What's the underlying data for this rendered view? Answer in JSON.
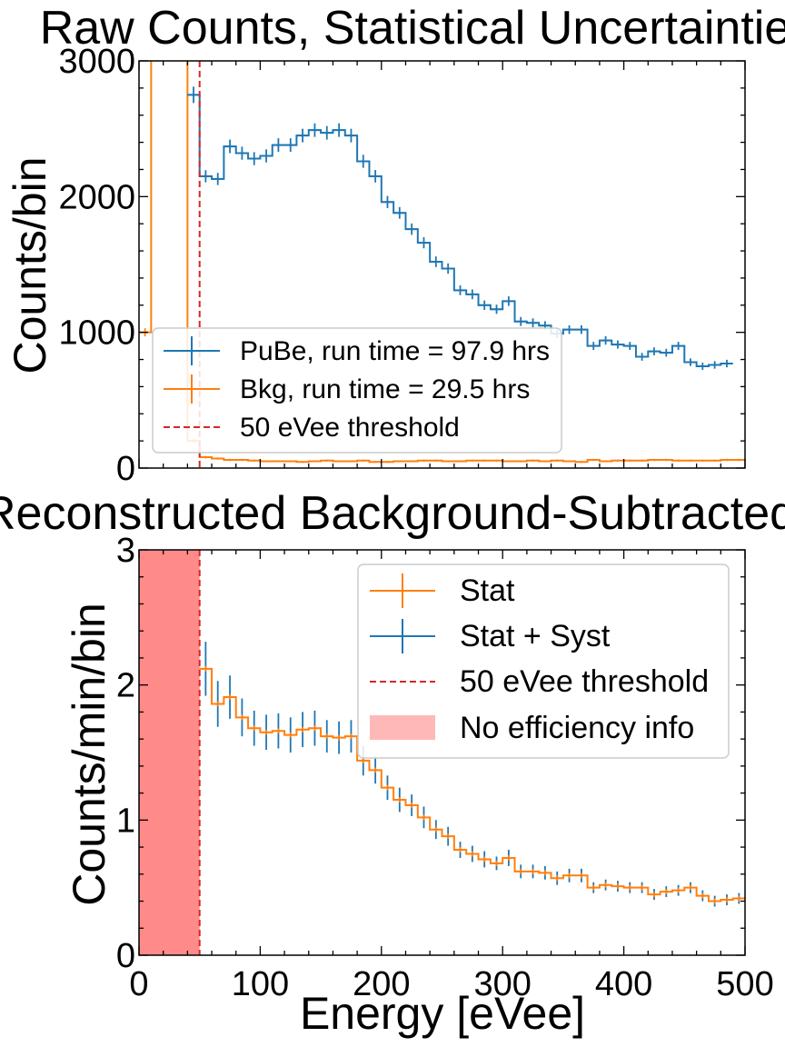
{
  "colors": {
    "pube": "#1f77b4",
    "bkg": "#ff7f0e",
    "threshold": "#d62728",
    "noeff_band": "#ff8a8a",
    "noeff_legend": "#ffb8b8"
  },
  "chart_data": [
    {
      "type": "line",
      "title": "Raw Counts, Statistical Uncertainties",
      "xlabel": "",
      "ylabel": "Counts/bin",
      "xlim": [
        0,
        500
      ],
      "ylim": [
        0,
        3000
      ],
      "yticks": [
        "0",
        "1000",
        "2000",
        "3000"
      ],
      "xticks": [
        0,
        100,
        200,
        300,
        400,
        500
      ],
      "grid": false,
      "legend_placement": "lower-left",
      "legend": [
        "PuBe, run time = 97.9 hrs",
        "Bkg, run time = 29.5 hrs",
        "50 eVee threshold"
      ],
      "threshold": 50,
      "bin_width": 10,
      "series": [
        {
          "name": "PuBe, run time = 97.9 hrs",
          "bin_start": 40,
          "values": [
            2750,
            2150,
            2130,
            2370,
            2320,
            2280,
            2300,
            2380,
            2380,
            2450,
            2490,
            2470,
            2490,
            2450,
            2260,
            2150,
            1960,
            1880,
            1760,
            1660,
            1520,
            1470,
            1310,
            1280,
            1200,
            1170,
            1230,
            1080,
            1070,
            1050,
            990,
            1020,
            1020,
            900,
            940,
            910,
            900,
            820,
            860,
            850,
            900,
            780,
            750,
            760,
            770
          ],
          "errors": [
            60,
            45,
            45,
            50,
            48,
            48,
            48,
            50,
            50,
            50,
            50,
            50,
            50,
            50,
            48,
            46,
            45,
            43,
            42,
            41,
            39,
            38,
            36,
            36,
            35,
            34,
            35,
            33,
            33,
            32,
            32,
            32,
            32,
            30,
            31,
            30,
            30,
            29,
            29,
            29,
            30,
            28,
            27,
            28,
            28
          ]
        },
        {
          "name": "Bkg, run time = 29.5 hrs",
          "bin_start": 0,
          "values": [
            1000,
            6000,
            6000,
            6000,
            200,
            80,
            70,
            60,
            60,
            55,
            50,
            50,
            50,
            45,
            50,
            55,
            50,
            50,
            55,
            45,
            45,
            50,
            50,
            55,
            55,
            50,
            50,
            55,
            55,
            55,
            50,
            50,
            55,
            50,
            55,
            50,
            45,
            60,
            50,
            55,
            55,
            55,
            60,
            60,
            55,
            55,
            55,
            55,
            60,
            60
          ],
          "errors": [
            30,
            80,
            80,
            80,
            15,
            9,
            8,
            8,
            8,
            7,
            7,
            7,
            7,
            7,
            7,
            7,
            7,
            7,
            7,
            7,
            7,
            7,
            7,
            7,
            7,
            7,
            7,
            7,
            7,
            7,
            7,
            7,
            7,
            7,
            7,
            7,
            7,
            8,
            7,
            7,
            7,
            7,
            8,
            8,
            7,
            7,
            7,
            7,
            8,
            8
          ]
        }
      ]
    },
    {
      "type": "line",
      "title": "Reconstructed Background-Subtracted",
      "xlabel": "Energy [eVee]",
      "ylabel": "Counts/min/bin",
      "xlim": [
        0,
        500
      ],
      "ylim": [
        0,
        3
      ],
      "yticks": [
        "0",
        "1",
        "2",
        "3"
      ],
      "xticks": [
        "0",
        "100",
        "200",
        "300",
        "400",
        "500"
      ],
      "grid": false,
      "legend_placement": "top-right",
      "legend": [
        "Stat",
        "Stat + Syst",
        "50 eVee threshold",
        "No efficiency info"
      ],
      "threshold": 50,
      "no_efficiency_region": [
        0,
        50
      ],
      "bin_width": 10,
      "series": [
        {
          "name": "Stat",
          "bin_start": 50,
          "values": [
            2.12,
            1.86,
            1.91,
            1.76,
            1.68,
            1.65,
            1.66,
            1.63,
            1.67,
            1.68,
            1.62,
            1.61,
            1.62,
            1.44,
            1.37,
            1.24,
            1.15,
            1.11,
            1.02,
            0.93,
            0.88,
            0.78,
            0.75,
            0.71,
            0.68,
            0.72,
            0.62,
            0.62,
            0.61,
            0.57,
            0.59,
            0.59,
            0.5,
            0.52,
            0.51,
            0.5,
            0.5,
            0.45,
            0.47,
            0.48,
            0.5,
            0.44,
            0.4,
            0.41,
            0.42
          ],
          "errors": [
            0.02,
            0.02,
            0.02,
            0.02,
            0.02,
            0.02,
            0.02,
            0.02,
            0.02,
            0.02,
            0.02,
            0.02,
            0.02,
            0.02,
            0.02,
            0.02,
            0.02,
            0.02,
            0.02,
            0.02,
            0.02,
            0.02,
            0.02,
            0.02,
            0.02,
            0.02,
            0.02,
            0.02,
            0.02,
            0.02,
            0.02,
            0.02,
            0.02,
            0.02,
            0.02,
            0.02,
            0.02,
            0.02,
            0.02,
            0.02,
            0.02,
            0.02,
            0.02,
            0.02,
            0.02
          ]
        },
        {
          "name": "Stat + Syst",
          "bin_start": 50,
          "values": [
            2.12,
            1.86,
            1.91,
            1.76,
            1.68,
            1.65,
            1.66,
            1.63,
            1.67,
            1.68,
            1.62,
            1.61,
            1.62,
            1.44,
            1.37,
            1.24,
            1.15,
            1.11,
            1.02,
            0.93,
            0.88,
            0.78,
            0.75,
            0.71,
            0.68,
            0.72,
            0.62,
            0.62,
            0.61,
            0.57,
            0.59,
            0.59,
            0.5,
            0.52,
            0.51,
            0.5,
            0.5,
            0.45,
            0.47,
            0.48,
            0.5,
            0.44,
            0.4,
            0.41,
            0.42
          ],
          "errors": [
            0.2,
            0.17,
            0.16,
            0.14,
            0.13,
            0.13,
            0.13,
            0.13,
            0.13,
            0.13,
            0.12,
            0.12,
            0.12,
            0.11,
            0.1,
            0.09,
            0.09,
            0.08,
            0.08,
            0.07,
            0.07,
            0.06,
            0.06,
            0.06,
            0.05,
            0.06,
            0.05,
            0.05,
            0.05,
            0.05,
            0.05,
            0.05,
            0.04,
            0.04,
            0.04,
            0.04,
            0.04,
            0.04,
            0.04,
            0.04,
            0.04,
            0.04,
            0.04,
            0.04,
            0.04
          ]
        }
      ]
    }
  ]
}
